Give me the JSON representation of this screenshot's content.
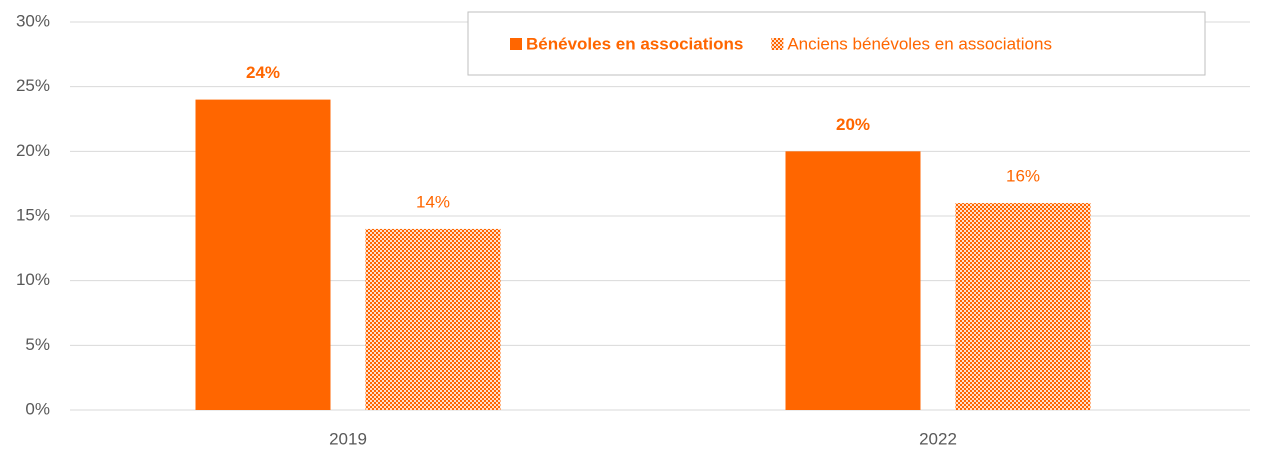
{
  "chart_data": {
    "type": "bar",
    "categories": [
      "2019",
      "2022"
    ],
    "series": [
      {
        "name": "Bénévoles en associations",
        "color": "#ff6600",
        "values": [
          24,
          20
        ],
        "value_labels": [
          "24%",
          "20%"
        ]
      },
      {
        "name": "Anciens bénévoles en associations",
        "color": "#ff6600",
        "pattern": "checker",
        "values": [
          14,
          16
        ],
        "value_labels": [
          "14%",
          "16%"
        ]
      }
    ],
    "ylim": [
      0,
      30
    ],
    "yticks": [
      {
        "value": 0,
        "label": "0%"
      },
      {
        "value": 5,
        "label": "5%"
      },
      {
        "value": 10,
        "label": "10%"
      },
      {
        "value": 15,
        "label": "15%"
      },
      {
        "value": 20,
        "label": "20%"
      },
      {
        "value": 25,
        "label": "25%"
      },
      {
        "value": 30,
        "label": "30%"
      }
    ],
    "grid": true,
    "legend": "top-right"
  }
}
